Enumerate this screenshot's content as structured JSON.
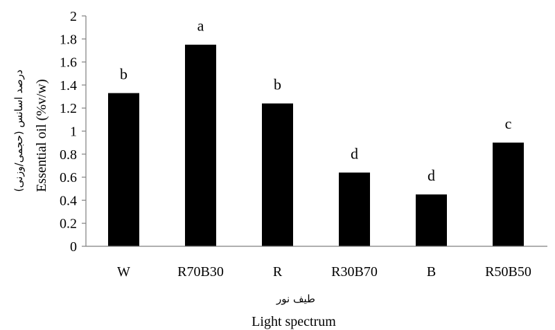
{
  "chart_data": {
    "type": "bar",
    "categories": [
      "W",
      "R70B30",
      "R",
      "R30B70",
      "B",
      "R50B50"
    ],
    "values": [
      1.33,
      1.75,
      1.24,
      0.64,
      0.45,
      0.9
    ],
    "significance_letters": [
      "b",
      "a",
      "b",
      "d",
      "d",
      "c"
    ],
    "ylim": [
      0,
      2
    ],
    "yticks": [
      "0",
      "0.2",
      "0.4",
      "0.6",
      "0.8",
      "1",
      "1.2",
      "1.4",
      "1.6",
      "1.8",
      "2"
    ],
    "ylabel": "Essential oil (%v/w)",
    "ylabel_fa": "درصد اسانس (حجمی/وزنی)",
    "xlabel": "Light spectrum",
    "xlabel_fa": "طیف نور",
    "grid": false,
    "colors": {
      "bar": "#000000",
      "axis": "#7f7f7f"
    }
  }
}
